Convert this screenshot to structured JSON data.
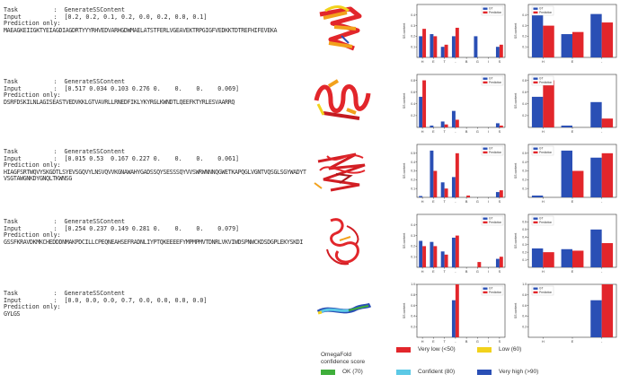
{
  "panels": [
    {
      "task_label": "Task",
      "task_value": "GenerateSSContent",
      "input_label": "Input",
      "input_value": "[0.2, 0.2, 0.1, 0.2, 0.0, 0.2, 0.0, 0.1]",
      "pred_label": "Prediction only:",
      "sequence": "MAEAGKEIIGKTYEIAGDIAGDRTYYYRHVEDVARHGDWMAELATSTFERLVGEAVEKTRPGIGFVEDKKTDTREFHIFEVEKA"
    },
    {
      "task_label": "Task",
      "task_value": "GenerateSSContent",
      "input_label": "Input",
      "input_value": "[0.517 0.034 0.103 0.276 0.    0.    0.    0.069]",
      "pred_label": "Prediction only:",
      "sequence": "DSRFDSKILNLAGISEASTVEDVKKLGTVAVRLLRNEDFIKLYKYRGLKWNDTLQEEFKTYRLESVAARRQ"
    },
    {
      "task_label": "Task",
      "task_value": "GenerateSSContent",
      "input_label": "Input",
      "input_value": "[0.015 0.53  0.167 0.227 0.    0.    0.    0.061]",
      "pred_label": "Prediction only:",
      "sequence": "HIAGFSRTWQVYSKGDTLSYEVSGQVYLNSVQVVKGNAWAHYGADSSQYSESSSQYVVSWRWNNNQGWETKAPQGLVGNTVQSGLSGYWADYTVSGTAWGNKDYGNQLTKWNSG"
    },
    {
      "task_label": "Task",
      "task_value": "GenerateSSContent",
      "input_label": "Input",
      "input_value": "[0.254 0.237 0.149 0.281 0.    0.    0.    0.079]",
      "pred_label": "Prediction only:",
      "sequence": "GSSFKRAVDKMKCHEDDDNMAKPDCILLCPEQNEAHSEFRADNLIYPTQKEEEEFYMPMPMVTDNRLVKVIWDSPNWCKDSDGPLEKYSKDI"
    },
    {
      "task_label": "Task",
      "task_value": "GenerateSSContent",
      "input_label": "Input",
      "input_value": "[0.0, 0.0, 0.0, 0.7, 0.0, 0.0, 0.0, 0.0]",
      "pred_label": "Prediction only:",
      "sequence": "GYLGS"
    }
  ],
  "colors": {
    "gt": "#2a4fb5",
    "pred": "#e2262b"
  },
  "chart_data": [
    {
      "type": "bar",
      "ylabel": "SS content",
      "categories": [
        "H",
        "E",
        "T",
        "-",
        "B",
        "G",
        "I",
        "S"
      ],
      "ylim": [
        0,
        0.5
      ],
      "yticks": [
        0.1,
        0.2,
        0.3,
        0.4
      ],
      "series": [
        {
          "name": "GT",
          "values": [
            0.2,
            0.22,
            0.1,
            0.2,
            0,
            0.2,
            0,
            0.1
          ]
        },
        {
          "name": "Prediction",
          "values": [
            0.27,
            0.2,
            0.12,
            0.28,
            0,
            0,
            0,
            0.12
          ]
        }
      ]
    },
    {
      "type": "bar",
      "ylabel": "SS content",
      "categories": [
        "H",
        "E",
        "-"
      ],
      "ylim": [
        0,
        0.5
      ],
      "yticks": [
        0.1,
        0.2,
        0.3,
        0.4
      ],
      "series": [
        {
          "name": "GT",
          "values": [
            0.41,
            0.22,
            0.41
          ]
        },
        {
          "name": "Prediction",
          "values": [
            0.3,
            0.24,
            0.33
          ]
        }
      ]
    },
    {
      "type": "bar",
      "ylabel": "SS content",
      "categories": [
        "H",
        "E",
        "T",
        "-",
        "B",
        "G",
        "I",
        "S"
      ],
      "ylim": [
        0,
        0.9
      ],
      "yticks": [
        0.2,
        0.4,
        0.6,
        0.8
      ],
      "series": [
        {
          "name": "GT",
          "values": [
            0.52,
            0.03,
            0.1,
            0.28,
            0,
            0,
            0,
            0.07
          ]
        },
        {
          "name": "Prediction",
          "values": [
            0.8,
            0,
            0.05,
            0.13,
            0,
            0,
            0,
            0.03
          ]
        }
      ]
    },
    {
      "type": "bar",
      "ylabel": "SS content",
      "categories": [
        "H",
        "E",
        "-"
      ],
      "ylim": [
        0,
        0.9
      ],
      "yticks": [
        0.2,
        0.4,
        0.6,
        0.8
      ],
      "series": [
        {
          "name": "GT",
          "values": [
            0.52,
            0.03,
            0.43
          ]
        },
        {
          "name": "Prediction",
          "values": [
            0.8,
            0,
            0.15
          ]
        }
      ]
    },
    {
      "type": "bar",
      "ylabel": "SS content",
      "categories": [
        "H",
        "E",
        "T",
        "-",
        "B",
        "G",
        "I",
        "S"
      ],
      "ylim": [
        0,
        0.6
      ],
      "yticks": [
        0.1,
        0.2,
        0.3,
        0.4,
        0.5
      ],
      "series": [
        {
          "name": "GT",
          "values": [
            0.015,
            0.53,
            0.17,
            0.23,
            0,
            0,
            0,
            0.06
          ]
        },
        {
          "name": "Prediction",
          "values": [
            0,
            0.3,
            0.1,
            0.5,
            0.02,
            0,
            0,
            0.08
          ]
        }
      ]
    },
    {
      "type": "bar",
      "ylabel": "SS content",
      "categories": [
        "H",
        "E",
        "-"
      ],
      "ylim": [
        0,
        0.6
      ],
      "yticks": [
        0.1,
        0.2,
        0.3,
        0.4,
        0.5
      ],
      "series": [
        {
          "name": "GT",
          "values": [
            0.02,
            0.53,
            0.45
          ]
        },
        {
          "name": "Prediction",
          "values": [
            0,
            0.3,
            0.5
          ]
        }
      ]
    },
    {
      "type": "bar",
      "ylabel": "SS content",
      "categories": [
        "H",
        "E",
        "T",
        "-",
        "B",
        "G",
        "I",
        "S"
      ],
      "ylim": [
        0,
        0.5
      ],
      "yticks": [
        0.1,
        0.2,
        0.3,
        0.4
      ],
      "series": [
        {
          "name": "GT",
          "values": [
            0.25,
            0.24,
            0.15,
            0.28,
            0,
            0,
            0,
            0.08
          ]
        },
        {
          "name": "Prediction",
          "values": [
            0.2,
            0.2,
            0.12,
            0.3,
            0,
            0.05,
            0,
            0.1
          ]
        }
      ]
    },
    {
      "type": "bar",
      "ylabel": "SS content",
      "categories": [
        "H",
        "E",
        "-"
      ],
      "ylim": [
        0,
        0.7
      ],
      "yticks": [
        0.1,
        0.2,
        0.3,
        0.4,
        0.5,
        0.6
      ],
      "series": [
        {
          "name": "GT",
          "values": [
            0.25,
            0.24,
            0.5
          ]
        },
        {
          "name": "Prediction",
          "values": [
            0.2,
            0.22,
            0.32
          ]
        }
      ]
    },
    {
      "type": "bar",
      "ylabel": "SS content",
      "categories": [
        "H",
        "E",
        "T",
        "-",
        "B",
        "G",
        "I",
        "S"
      ],
      "ylim": [
        0,
        1.0
      ],
      "yticks": [
        0.2,
        0.4,
        0.6,
        0.8,
        1.0
      ],
      "series": [
        {
          "name": "GT",
          "values": [
            0,
            0,
            0,
            0.7,
            0,
            0,
            0,
            0
          ]
        },
        {
          "name": "Prediction",
          "values": [
            0,
            0,
            0,
            1.0,
            0,
            0,
            0,
            0
          ]
        }
      ]
    },
    {
      "type": "bar",
      "ylabel": "SS content",
      "categories": [
        "H",
        "E",
        "-"
      ],
      "ylim": [
        0,
        1.0
      ],
      "yticks": [
        0.2,
        0.4,
        0.6,
        0.8,
        1.0
      ],
      "series": [
        {
          "name": "GT",
          "values": [
            0,
            0,
            0.7
          ]
        },
        {
          "name": "Prediction",
          "values": [
            0,
            0,
            1.0
          ]
        }
      ]
    }
  ],
  "legend": {
    "title": "OmegaFold confidence score",
    "items": [
      {
        "label": "Very low (<50)",
        "color": "#e2262b"
      },
      {
        "label": "Low (60)",
        "color": "#f2d21c"
      },
      {
        "label": "OK (70)",
        "color": "#3fae3b"
      },
      {
        "label": "Confident (80)",
        "color": "#5cc9e6"
      },
      {
        "label": "Very high (>90)",
        "color": "#2a4fb5"
      }
    ]
  }
}
